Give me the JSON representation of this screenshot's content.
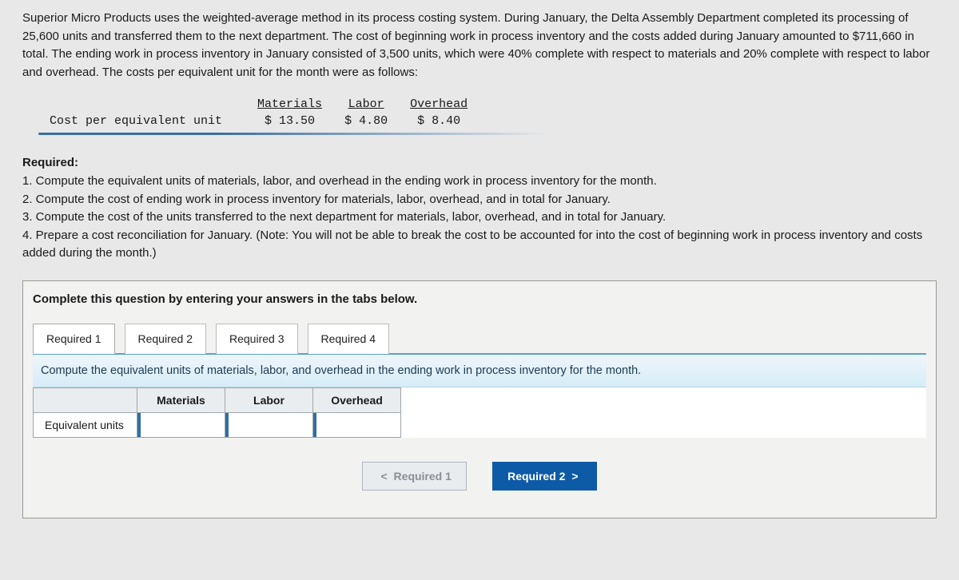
{
  "problem_text": "Superior Micro Products uses the weighted-average method in its process costing system. During January, the Delta Assembly Department completed its processing of 25,600 units and transferred them to the next department. The cost of beginning work in process inventory and the costs added during January amounted to $711,660 in total. The ending work in process inventory in January consisted of 3,500 units, which were 40% complete with respect to materials and 20% complete with respect to labor and overhead. The costs per equivalent unit for the month were as follows:",
  "cost_table": {
    "row_label": "Cost per equivalent unit",
    "headers": {
      "materials": "Materials",
      "labor": "Labor",
      "overhead": "Overhead"
    },
    "values": {
      "materials": "$ 13.50",
      "labor": "$ 4.80",
      "overhead": "$ 8.40"
    }
  },
  "required": {
    "heading": "Required:",
    "items": [
      "1. Compute the equivalent units of materials, labor, and overhead in the ending work in process inventory for the month.",
      "2. Compute the cost of ending work in process inventory for materials, labor, overhead, and in total for January.",
      "3. Compute the cost of the units transferred to the next department for materials, labor, overhead, and in total for January.",
      "4. Prepare a cost reconciliation for January. (Note: You will not be able to break the cost to be accounted for into the cost of beginning work in process inventory and costs added during the month.)"
    ]
  },
  "panel": {
    "instruction": "Complete this question by entering your answers in the tabs below.",
    "tabs": {
      "r1": "Required 1",
      "r2": "Required 2",
      "r3": "Required 3",
      "r4": "Required 4"
    },
    "tab1_instruction": "Compute the equivalent units of materials, labor, and overhead in the ending work in process inventory for the month.",
    "eq_table": {
      "col_materials": "Materials",
      "col_labor": "Labor",
      "col_overhead": "Overhead",
      "row_label": "Equivalent units"
    },
    "nav": {
      "prev_label": "Required 1",
      "next_label": "Required 2"
    }
  }
}
